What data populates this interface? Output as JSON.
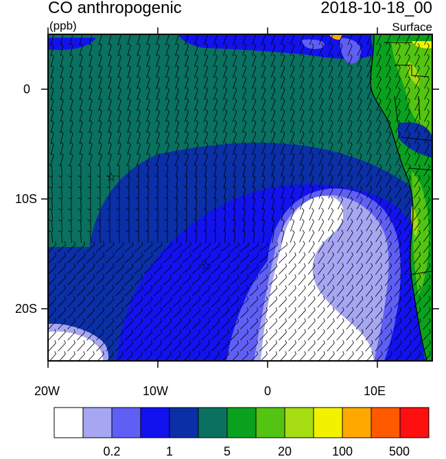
{
  "header": {
    "title": "CO anthropogenic",
    "units": "(ppb)",
    "timestamp": "2018-10-18_00",
    "level": "Surface"
  },
  "map": {
    "region": "Southeast Atlantic / West Africa",
    "markers": [
      "star-marker-1",
      "star-marker-2"
    ]
  },
  "axes": {
    "x_ticks": [
      "20W",
      "10W",
      "0",
      "10E"
    ],
    "y_ticks": [
      "0",
      "10S",
      "20S"
    ]
  },
  "colorbar": {
    "colors": [
      "#ffffff",
      "#a6a6f2",
      "#5f5ff5",
      "#1212ee",
      "#0a2fa6",
      "#0a7060",
      "#0aa11e",
      "#52c411",
      "#a6dc12",
      "#f2f200",
      "#ffa800",
      "#ff5a00",
      "#ff1010"
    ],
    "labels": [
      "0.2",
      "1",
      "5",
      "20",
      "100",
      "500"
    ]
  }
}
